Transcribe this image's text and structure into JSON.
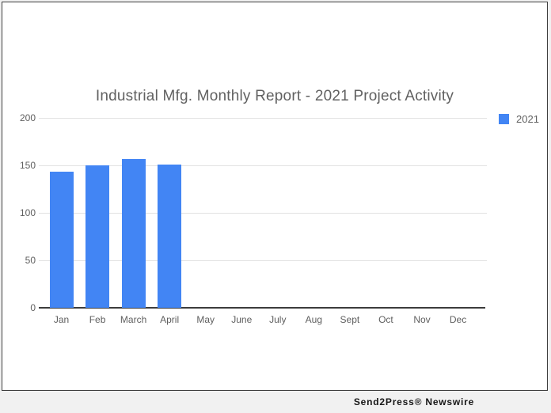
{
  "title": "Industrial Mfg. Monthly Report - 2021 Project Activity",
  "legend": {
    "label": "2021",
    "swatch_color": "#4285f4"
  },
  "footer": {
    "credit": "Send2Press® Newswire"
  },
  "colors": {
    "bar": "#4285f4",
    "title_text": "#616161",
    "axis_text": "#5f5f5f",
    "gridline": "#e2e2e2",
    "baseline": "#3c3c3c",
    "card_background": "#ffffff",
    "page_background": "#f1f1f1",
    "card_border": "#3e3e3e"
  },
  "chart_data": {
    "type": "bar",
    "title": "Industrial Mfg. Monthly Report - 2021 Project Activity",
    "categories": [
      "Jan",
      "Feb",
      "March",
      "April",
      "May",
      "June",
      "July",
      "Aug",
      "Sept",
      "Oct",
      "Nov",
      "Dec"
    ],
    "series": [
      {
        "name": "2021",
        "color": "#4285f4",
        "values": [
          143,
          150,
          157,
          151,
          null,
          null,
          null,
          null,
          null,
          null,
          null,
          null
        ]
      }
    ],
    "xlabel": "",
    "ylabel": "",
    "ylim": [
      0,
      200
    ],
    "yticks": [
      0,
      50,
      100,
      150,
      200
    ],
    "grid": true,
    "legend_position": "top-right"
  }
}
